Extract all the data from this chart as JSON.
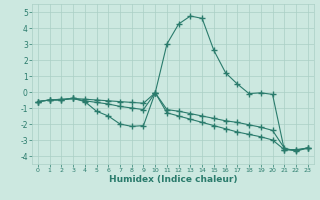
{
  "xlabel": "Humidex (Indice chaleur)",
  "x": [
    0,
    1,
    2,
    3,
    4,
    5,
    6,
    7,
    8,
    9,
    10,
    11,
    12,
    13,
    14,
    15,
    16,
    17,
    18,
    19,
    20,
    21,
    22,
    23
  ],
  "line1": [
    -0.6,
    -0.5,
    -0.5,
    -0.4,
    -0.6,
    -1.2,
    -1.5,
    -2.0,
    -2.15,
    -2.1,
    -0.05,
    3.0,
    4.25,
    4.75,
    4.6,
    2.6,
    1.2,
    0.5,
    -0.1,
    -0.05,
    -0.15,
    -3.6,
    -3.6,
    -3.5
  ],
  "line2": [
    -0.6,
    -0.5,
    -0.5,
    -0.4,
    -0.55,
    -0.65,
    -0.75,
    -0.9,
    -1.0,
    -1.1,
    -0.05,
    -1.3,
    -1.5,
    -1.7,
    -1.9,
    -2.1,
    -2.3,
    -2.5,
    -2.65,
    -2.8,
    -3.0,
    -3.6,
    -3.65,
    -3.5
  ],
  "line3": [
    -0.6,
    -0.5,
    -0.45,
    -0.4,
    -0.45,
    -0.5,
    -0.55,
    -0.6,
    -0.65,
    -0.7,
    -0.05,
    -1.1,
    -1.2,
    -1.35,
    -1.5,
    -1.65,
    -1.8,
    -1.9,
    -2.05,
    -2.2,
    -2.4,
    -3.5,
    -3.7,
    -3.5
  ],
  "line_color": "#2a7b6c",
  "bg_color": "#cce8e0",
  "grid_color": "#aacfc5",
  "ylim": [
    -4.5,
    5.5
  ],
  "yticks": [
    -4,
    -3,
    -2,
    -1,
    0,
    1,
    2,
    3,
    4,
    5
  ],
  "xticks": [
    0,
    1,
    2,
    3,
    4,
    5,
    6,
    7,
    8,
    9,
    10,
    11,
    12,
    13,
    14,
    15,
    16,
    17,
    18,
    19,
    20,
    21,
    22,
    23
  ]
}
